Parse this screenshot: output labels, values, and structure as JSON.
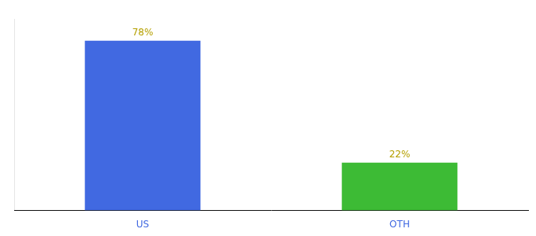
{
  "chart_data": {
    "type": "bar",
    "categories": [
      "US",
      "OTH"
    ],
    "values": [
      78,
      22
    ],
    "value_labels": [
      "78%",
      "22%"
    ],
    "colors": [
      "#4169e1",
      "#3dbb35"
    ],
    "ylim": [
      0,
      88
    ],
    "grid": false,
    "data_labels": true,
    "tick_labels": "x"
  }
}
